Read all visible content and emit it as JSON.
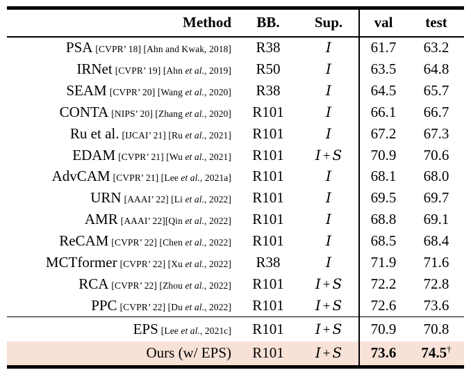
{
  "table": {
    "headers": {
      "method": "Method",
      "bb": "BB.",
      "sup": "Sup.",
      "val": "val",
      "test": "test"
    },
    "highlight_color": "#f8e2d7",
    "rows": [
      {
        "method": "PSA",
        "cite_pre": "[CVPR’ 18] [Ahn and Kwak, 2018]",
        "cite_it": "",
        "cite_post": "",
        "bb": "R38",
        "sup": "I",
        "val": "61.7",
        "test": "63.2"
      },
      {
        "method": "IRNet",
        "cite_pre": "[CVPR’ 19] [Ahn ",
        "cite_it": "et al.",
        "cite_post": ", 2019]",
        "bb": "R50",
        "sup": "I",
        "val": "63.5",
        "test": "64.8"
      },
      {
        "method": "SEAM",
        "cite_pre": "[CVPR’ 20] [Wang ",
        "cite_it": "et al.",
        "cite_post": ", 2020]",
        "bb": "R38",
        "sup": "I",
        "val": "64.5",
        "test": "65.7"
      },
      {
        "method": "CONTA",
        "cite_pre": "[NIPS’ 20] [Zhang ",
        "cite_it": "et al.",
        "cite_post": ", 2020]",
        "bb": "R101",
        "sup": "I",
        "val": "66.1",
        "test": "66.7"
      },
      {
        "method": "Ru et al.",
        "cite_pre": "[IJCAI’ 21] [Ru ",
        "cite_it": "et al.",
        "cite_post": ", 2021]",
        "bb": "R101",
        "sup": "I",
        "val": "67.2",
        "test": "67.3"
      },
      {
        "method": "EDAM",
        "cite_pre": "[CVPR’ 21] [Wu ",
        "cite_it": "et al.",
        "cite_post": ", 2021]",
        "bb": "R101",
        "sup": "I + S",
        "val": "70.9",
        "test": "70.6"
      },
      {
        "method": "AdvCAM",
        "cite_pre": "[CVPR’ 21] [Lee ",
        "cite_it": "et al.",
        "cite_post": ", 2021a]",
        "bb": "R101",
        "sup": "I",
        "val": "68.1",
        "test": "68.0"
      },
      {
        "method": "URN",
        "cite_pre": "[AAAI’ 22] [Li ",
        "cite_it": "et al.",
        "cite_post": ", 2022]",
        "bb": "R101",
        "sup": "I",
        "val": "69.5",
        "test": "69.7"
      },
      {
        "method": "AMR",
        "cite_pre": "[AAAI’ 22][Qin ",
        "cite_it": "et al.",
        "cite_post": ", 2022]",
        "bb": "R101",
        "sup": "I",
        "val": "68.8",
        "test": "69.1"
      },
      {
        "method": "ReCAM",
        "cite_pre": "[CVPR’ 22] [Chen ",
        "cite_it": "et al.",
        "cite_post": ", 2022]",
        "bb": "R101",
        "sup": "I",
        "val": "68.5",
        "test": "68.4"
      },
      {
        "method": "MCTformer",
        "cite_pre": "[CVPR’ 22] [Xu ",
        "cite_it": "et al.",
        "cite_post": ", 2022]",
        "bb": "R38",
        "sup": "I",
        "val": "71.9",
        "test": "71.6"
      },
      {
        "method": "RCA",
        "cite_pre": "[CVPR’ 22] [Zhou ",
        "cite_it": "et al.",
        "cite_post": ", 2022]",
        "bb": "R101",
        "sup": "I + S",
        "val": "72.2",
        "test": "72.8"
      },
      {
        "method": "PPC",
        "cite_pre": "[CVPR’ 22] [Du ",
        "cite_it": "et al.",
        "cite_post": ", 2022]",
        "bb": "R101",
        "sup": "I + S",
        "val": "72.6",
        "test": "73.6"
      }
    ],
    "baseline_rows": [
      {
        "method": "EPS",
        "cite_pre": "[Lee ",
        "cite_it": "et al.",
        "cite_post": ", 2021c]",
        "bb": "R101",
        "sup": "I + S",
        "val": "70.9",
        "test": "70.8"
      },
      {
        "method": "Ours (w/ EPS)",
        "cite_pre": "",
        "cite_it": "",
        "cite_post": "",
        "bb": "R101",
        "sup": "I + S",
        "val": "73.6",
        "test": "74.5",
        "test_mark": "†",
        "bold_scores": true,
        "highlight": true
      }
    ]
  }
}
